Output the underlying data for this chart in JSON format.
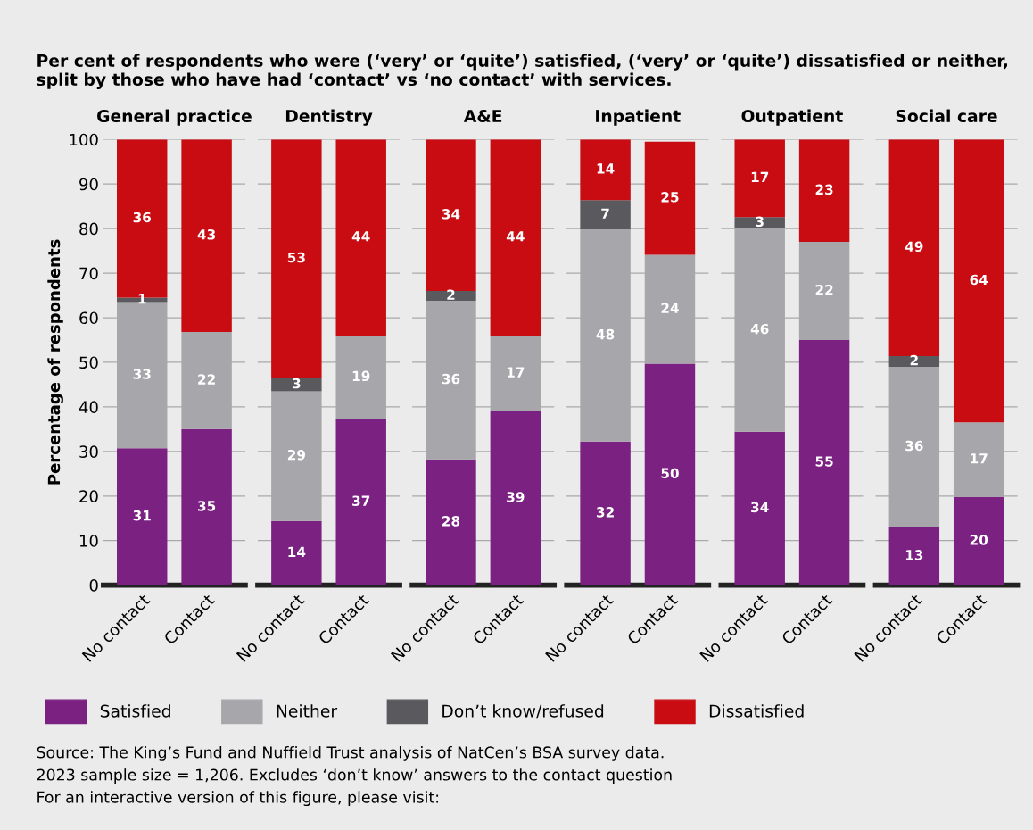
{
  "chart_data": [
    {
      "type": "bar",
      "stacked": true,
      "title": "General practice",
      "subtitle": "Per cent of respondents who were (‘very’ or ‘quite’) satisfied, (‘very’ or ‘quite’) dissatisfied or neither, split by those who have had ‘contact’ vs ‘no contact’ with services.",
      "ylabel": "Percentage of respondents",
      "categories": [
        "No contact",
        "Contact"
      ],
      "ylim": [
        0,
        100
      ],
      "yticks": [
        0,
        10,
        20,
        30,
        40,
        50,
        60,
        70,
        80,
        90,
        100
      ],
      "grid": "y",
      "legend": "bottom",
      "annotations": [
        "Source: The King’s Fund and Nuffield Trust analysis of NatCen’s BSA survey data.",
        "2023 sample size = 1,206. Excludes ‘don’t know’ answers to the contact question",
        "For an interactive version of this figure, please visit:"
      ],
      "series": [
        {
          "name": "Satisfied",
          "color": "#7b2182",
          "values": [
            30.7,
            35
          ],
          "value_labels": [
            "31",
            "35"
          ]
        },
        {
          "name": "Neither",
          "color": "#a7a6aa",
          "values": [
            32.8,
            21.8
          ],
          "value_labels": [
            "33",
            "22"
          ]
        },
        {
          "name": "Don’t know/refused",
          "color": "#5a595e",
          "values": [
            1.0,
            0
          ],
          "value_labels": [
            "1",
            null
          ]
        },
        {
          "name": "Dissatisfied",
          "color": "#c80c12",
          "values": [
            35.5,
            43.2
          ],
          "value_labels": [
            "36",
            "43"
          ]
        }
      ]
    },
    {
      "type": "bar",
      "stacked": true,
      "title": "Dentistry",
      "categories": [
        "No contact",
        "Contact"
      ],
      "ylim": [
        0,
        100
      ],
      "yticks": [
        0,
        10,
        20,
        30,
        40,
        50,
        60,
        70,
        80,
        90,
        100
      ],
      "grid": "y",
      "tick_labels": "x",
      "series": [
        {
          "color": "#7b2182",
          "values": [
            14.4,
            37.3
          ],
          "value_labels": [
            "14",
            "37"
          ]
        },
        {
          "color": "#a7a6aa",
          "values": [
            29.1,
            18.7
          ],
          "value_labels": [
            "29",
            "19"
          ]
        },
        {
          "color": "#5a595e",
          "values": [
            3.0,
            0
          ],
          "value_labels": [
            "3",
            null
          ]
        },
        {
          "color": "#c80c12",
          "values": [
            53.5,
            44
          ],
          "value_labels": [
            "53",
            "44"
          ]
        }
      ]
    },
    {
      "type": "bar",
      "stacked": true,
      "title": "A&E",
      "categories": [
        "No contact",
        "Contact"
      ],
      "ylim": [
        0,
        100
      ],
      "yticks": [
        0,
        10,
        20,
        30,
        40,
        50,
        60,
        70,
        80,
        90,
        100
      ],
      "grid": "y",
      "tick_labels": "x",
      "series": [
        {
          "color": "#7b2182",
          "values": [
            28.2,
            39
          ],
          "value_labels": [
            "28",
            "39"
          ]
        },
        {
          "color": "#a7a6aa",
          "values": [
            35.6,
            17
          ],
          "value_labels": [
            "36",
            "17"
          ]
        },
        {
          "color": "#5a595e",
          "values": [
            2.2,
            0
          ],
          "value_labels": [
            "2",
            null
          ]
        },
        {
          "color": "#c80c12",
          "values": [
            34,
            44
          ],
          "value_labels": [
            "34",
            "44"
          ]
        }
      ]
    },
    {
      "type": "bar",
      "stacked": true,
      "title": "Inpatient",
      "categories": [
        "No contact",
        "Contact"
      ],
      "ylim": [
        0,
        100
      ],
      "yticks": [
        0,
        10,
        20,
        30,
        40,
        50,
        60,
        70,
        80,
        90,
        100
      ],
      "grid": "y",
      "tick_labels": "x",
      "series": [
        {
          "color": "#7b2182",
          "values": [
            32.2,
            49.7
          ],
          "value_labels": [
            "32",
            "50"
          ]
        },
        {
          "color": "#a7a6aa",
          "values": [
            47.6,
            24.4
          ],
          "value_labels": [
            "48",
            "24"
          ]
        },
        {
          "color": "#5a595e",
          "values": [
            6.6,
            0
          ],
          "value_labels": [
            "7",
            null
          ]
        },
        {
          "color": "#c80c12",
          "values": [
            13.6,
            25.4
          ],
          "value_labels": [
            "14",
            "25"
          ]
        }
      ]
    },
    {
      "type": "bar",
      "stacked": true,
      "title": "Outpatient",
      "categories": [
        "No contact",
        "Contact"
      ],
      "ylim": [
        0,
        100
      ],
      "yticks": [
        0,
        10,
        20,
        30,
        40,
        50,
        60,
        70,
        80,
        90,
        100
      ],
      "grid": "y",
      "tick_labels": "x",
      "series": [
        {
          "color": "#7b2182",
          "values": [
            34.4,
            55
          ],
          "value_labels": [
            "34",
            "55"
          ]
        },
        {
          "color": "#a7a6aa",
          "values": [
            45.6,
            22
          ],
          "value_labels": [
            "46",
            "22"
          ]
        },
        {
          "color": "#5a595e",
          "values": [
            2.6,
            0
          ],
          "value_labels": [
            "3",
            null
          ]
        },
        {
          "color": "#c80c12",
          "values": [
            17.4,
            23
          ],
          "value_labels": [
            "17",
            "23"
          ]
        }
      ]
    },
    {
      "type": "bar",
      "stacked": true,
      "title": "Social care",
      "categories": [
        "No contact",
        "Contact"
      ],
      "ylim": [
        0,
        100
      ],
      "yticks": [
        0,
        10,
        20,
        30,
        40,
        50,
        60,
        70,
        80,
        90,
        100
      ],
      "grid": "y",
      "tick_labels": "x",
      "series": [
        {
          "color": "#7b2182",
          "values": [
            13,
            19.8
          ],
          "value_labels": [
            "13",
            "20"
          ]
        },
        {
          "color": "#a7a6aa",
          "values": [
            36.0,
            16.7
          ],
          "value_labels": [
            "36",
            "17"
          ]
        },
        {
          "color": "#5a595e",
          "values": [
            2.4,
            0
          ],
          "value_labels": [
            "2",
            null
          ]
        },
        {
          "color": "#c80c12",
          "values": [
            48.6,
            63.5
          ],
          "value_labels": [
            "49",
            "64"
          ]
        }
      ]
    }
  ]
}
